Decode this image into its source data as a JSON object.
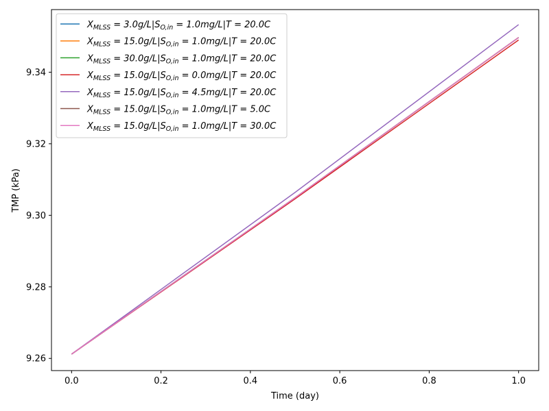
{
  "chart_data": {
    "type": "line",
    "title": "",
    "xlabel": "Time (day)",
    "ylabel": "TMP (kPa)",
    "xlim": [
      -0.045,
      1.045
    ],
    "ylim": [
      9.2566,
      9.3575
    ],
    "xticks": [
      0.0,
      0.2,
      0.4,
      0.6,
      0.8,
      1.0
    ],
    "xtick_labels": [
      "0.0",
      "0.2",
      "0.4",
      "0.6",
      "0.8",
      "1.0"
    ],
    "yticks": [
      9.26,
      9.28,
      9.3,
      9.32,
      9.34
    ],
    "ytick_labels": [
      "9.26",
      "9.28",
      "9.30",
      "9.32",
      "9.34"
    ],
    "grid": false,
    "legend_position": "top-left",
    "series": [
      {
        "name": "X_MLSS = 3.0g/L|S_O,in = 1.0mg/L|T = 20.0C",
        "color": "#1f77b4",
        "x": [
          0.0,
          0.5,
          1.0
        ],
        "y": [
          9.2612,
          9.3049,
          9.3497
        ]
      },
      {
        "name": "X_MLSS = 15.0g/L|S_O,in = 1.0mg/L|T = 20.0C",
        "color": "#ff7f0e",
        "x": [
          0.0,
          0.5,
          1.0
        ],
        "y": [
          9.2612,
          9.3049,
          9.3497
        ]
      },
      {
        "name": "X_MLSS = 30.0g/L|S_O,in = 1.0mg/L|T = 20.0C",
        "color": "#2ca02c",
        "x": [
          0.0,
          0.5,
          1.0
        ],
        "y": [
          9.2612,
          9.3049,
          9.3497
        ]
      },
      {
        "name": "X_MLSS = 15.0g/L|S_O,in = 0.0mg/L|T = 20.0C",
        "color": "#d62728",
        "x": [
          0.0,
          0.5,
          1.0
        ],
        "y": [
          9.2612,
          9.3046,
          9.349
        ]
      },
      {
        "name": "X_MLSS = 15.0g/L|S_O,in = 4.5mg/L|T = 20.0C",
        "color": "#9467bd",
        "x": [
          0.0,
          0.5,
          1.0
        ],
        "y": [
          9.2612,
          9.3064,
          9.3533
        ]
      },
      {
        "name": "X_MLSS = 15.0g/L|S_O,in = 1.0mg/L|T = 5.0C",
        "color": "#8c564b",
        "x": [
          0.0,
          0.5,
          1.0
        ],
        "y": [
          9.2612,
          9.3049,
          9.3497
        ]
      },
      {
        "name": "X_MLSS = 15.0g/L|S_O,in = 1.0mg/L|T = 30.0C",
        "color": "#e377c2",
        "x": [
          0.0,
          0.5,
          1.0
        ],
        "y": [
          9.2612,
          9.3049,
          9.3497
        ]
      }
    ],
    "legend_entries": [
      {
        "X_MLSS": "3.0",
        "S_O_in": "1.0",
        "T": "20.0"
      },
      {
        "X_MLSS": "15.0",
        "S_O_in": "1.0",
        "T": "20.0"
      },
      {
        "X_MLSS": "30.0",
        "S_O_in": "1.0",
        "T": "20.0"
      },
      {
        "X_MLSS": "15.0",
        "S_O_in": "0.0",
        "T": "20.0"
      },
      {
        "X_MLSS": "15.0",
        "S_O_in": "4.5",
        "T": "20.0"
      },
      {
        "X_MLSS": "15.0",
        "S_O_in": "1.0",
        "T": "5.0"
      },
      {
        "X_MLSS": "15.0",
        "S_O_in": "1.0",
        "T": "30.0"
      }
    ]
  }
}
